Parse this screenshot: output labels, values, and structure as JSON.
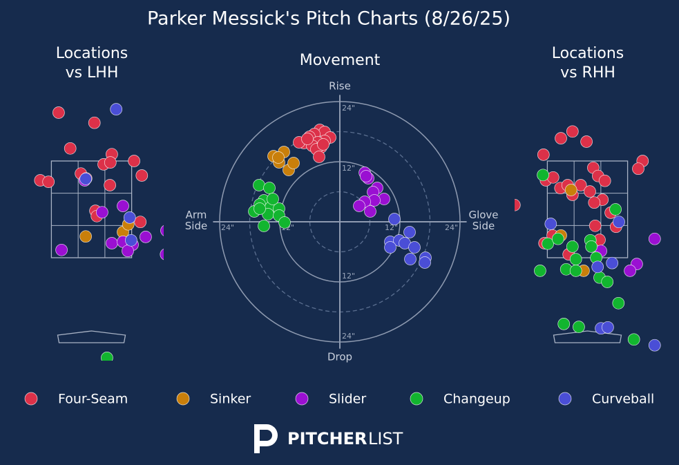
{
  "title": "Parker Messick's Pitch Charts (8/26/25)",
  "brand": [
    "PITCHER",
    "LIST"
  ],
  "chart_data": [
    {
      "type": "scatter",
      "title": "Locations vs LHH",
      "strike_zone": {
        "x": [
          -0.83,
          0.83
        ],
        "z": [
          1.5,
          3.5
        ]
      },
      "xlim": [
        -1.5,
        1.5
      ],
      "ylim": [
        -0.6,
        4.8
      ],
      "series": [
        {
          "name": "Four-Seam",
          "color": "#dc3149",
          "x": [
            -0.68,
            0.06,
            -0.44,
            0.42,
            0.25,
            0.39,
            0.88,
            -0.22,
            -0.11,
            1.04,
            -1.06,
            -0.89,
            0.38,
            0.08,
            0.11,
            1.01
          ],
          "y": [
            4.5,
            4.29,
            3.76,
            3.64,
            3.43,
            3.47,
            3.5,
            3.24,
            3.14,
            3.2,
            3.1,
            3.07,
            3.0,
            2.47,
            2.36,
            2.24
          ]
        },
        {
          "name": "Sinker",
          "color": "#c97f0b",
          "x": [
            -0.12,
            0.65,
            0.76
          ],
          "y": [
            1.94,
            2.03,
            2.19
          ]
        },
        {
          "name": "Slider",
          "color": "#9a10d2",
          "x": [
            -0.14,
            0.22,
            0.65,
            1.55,
            1.12,
            0.42,
            0.65,
            0.85,
            0.75,
            -0.62,
            1.54
          ],
          "y": [
            3.1,
            2.44,
            2.57,
            2.06,
            1.93,
            1.8,
            1.83,
            1.77,
            1.64,
            1.66,
            1.57
          ]
        },
        {
          "name": "Changeup",
          "color": "#12b52f",
          "x": [
            0.32
          ],
          "y": [
            -0.57
          ]
        },
        {
          "name": "Curveball",
          "color": "#4a4ed6",
          "x": [
            0.51,
            -0.12,
            0.79,
            0.82
          ],
          "y": [
            4.57,
            3.13,
            2.33,
            1.86
          ]
        }
      ]
    },
    {
      "type": "polar_scatter",
      "title": "Movement",
      "axis_labels": {
        "top": "Rise",
        "bottom": "Drop",
        "left": "Arm Side",
        "right": "Glove Side"
      },
      "rlim": [
        0,
        24
      ],
      "rticks": [
        {
          "value": 12,
          "label": "12\""
        },
        {
          "value": 24,
          "label": "24\""
        }
      ],
      "rminor": [
        6,
        18
      ],
      "series": [
        {
          "name": "Four-Seam",
          "color": "#dc3149",
          "x": [
            -4.0,
            -3.03,
            -5.1,
            -1.93,
            -6.07,
            -3.03,
            -4.41,
            -7.17,
            -8.14,
            -5.52,
            -3.72,
            -4.69,
            -3.31,
            -4.14,
            -6.48
          ],
          "y": [
            18.34,
            17.93,
            17.52,
            16.83,
            16.97,
            16.14,
            15.86,
            15.72,
            15.86,
            15.17,
            14.9,
            14.48,
            15.45,
            12.97,
            16.55
          ]
        },
        {
          "name": "Sinker",
          "color": "#c97f0b",
          "x": [
            -13.24,
            -11.17,
            -12.14,
            -10.21,
            -9.24,
            -12.28
          ],
          "y": [
            13.1,
            13.93,
            11.86,
            10.34,
            11.72,
            12.83
          ]
        },
        {
          "name": "Slider",
          "color": "#9a10d2",
          "x": [
            4.97,
            5.66,
            7.45,
            6.62,
            8.83,
            6.9,
            4.97,
            3.86,
            6.07,
            5.24
          ],
          "y": [
            9.79,
            8.69,
            6.76,
            5.93,
            4.55,
            4.28,
            4.0,
            3.17,
            2.07,
            9.1
          ]
        },
        {
          "name": "Changeup",
          "color": "#12b52f",
          "x": [
            -16.14,
            -14.07,
            -15.17,
            -17.1,
            -16.0,
            -13.79,
            -12.14,
            -14.34,
            -12.14,
            -11.03,
            -15.17,
            -16.0,
            -13.38
          ],
          "y": [
            7.31,
            6.76,
            4.28,
            2.07,
            3.45,
            2.9,
            2.62,
            1.52,
            1.24,
            -0.14,
            -0.83,
            2.62,
            4.55
          ]
        },
        {
          "name": "Curveball",
          "color": "#4a4ed6",
          "x": [
            10.9,
            13.93,
            10.07,
            11.86,
            12.97,
            14.9,
            10.07,
            17.1,
            14.07,
            16.97
          ],
          "y": [
            0.55,
            -2.07,
            -4.0,
            -3.72,
            -4.28,
            -5.1,
            -5.1,
            -7.17,
            -7.45,
            -8.14
          ]
        }
      ]
    },
    {
      "type": "scatter",
      "title": "Locations vs RHH",
      "strike_zone": {
        "x": [
          -0.83,
          0.83
        ],
        "z": [
          1.5,
          3.5
        ]
      },
      "xlim": [
        -1.5,
        1.5
      ],
      "ylim": [
        -0.6,
        4.8
      ],
      "series": [
        {
          "name": "Four-Seam",
          "color": "#dc3149",
          "x": [
            -0.31,
            -0.55,
            -0.02,
            -0.91,
            1.14,
            0.12,
            1.05,
            -0.86,
            -0.71,
            -0.56,
            -0.41,
            -0.14,
            0.05,
            0.22,
            0.36,
            -0.31,
            0.31,
            0.14,
            0.48,
            0.16,
            0.59,
            0.25,
            -0.89,
            -0.72,
            -0.39,
            -1.51
          ],
          "y": [
            4.11,
            3.97,
            3.9,
            3.63,
            3.5,
            3.36,
            3.34,
            3.1,
            3.16,
            2.94,
            3.0,
            3.0,
            2.87,
            3.19,
            3.09,
            2.8,
            2.7,
            2.64,
            2.43,
            2.16,
            2.14,
            1.87,
            1.8,
            1.96,
            1.57,
            2.59
          ]
        },
        {
          "name": "Sinker",
          "color": "#c97f0b",
          "x": [
            -0.34,
            -0.55,
            -0.08
          ],
          "y": [
            2.9,
            1.96,
            1.23
          ]
        },
        {
          "name": "Slider",
          "color": "#9a10d2",
          "x": [
            1.39,
            0.28,
            1.02,
            0.88
          ],
          "y": [
            1.89,
            1.64,
            1.37,
            1.23
          ]
        },
        {
          "name": "Changeup",
          "color": "#12b52f",
          "x": [
            -0.92,
            0.58,
            -0.31,
            0.06,
            0.08,
            0.18,
            -0.24,
            -0.82,
            -0.61,
            -0.98,
            -0.44,
            -0.24,
            0.25,
            0.41,
            0.64,
            -0.49,
            -0.18,
            0.96
          ],
          "y": [
            3.21,
            2.5,
            1.73,
            1.86,
            1.73,
            1.5,
            1.47,
            1.79,
            1.89,
            1.23,
            1.26,
            1.23,
            1.09,
            1.0,
            0.56,
            0.13,
            0.07,
            -0.19
          ]
        },
        {
          "name": "Curveball",
          "color": "#4a4ed6",
          "x": [
            -0.76,
            0.65,
            0.21,
            0.51,
            0.28,
            0.42,
            1.39
          ],
          "y": [
            2.2,
            2.24,
            1.31,
            1.39,
            0.04,
            0.06,
            -0.31
          ]
        }
      ]
    }
  ]
}
